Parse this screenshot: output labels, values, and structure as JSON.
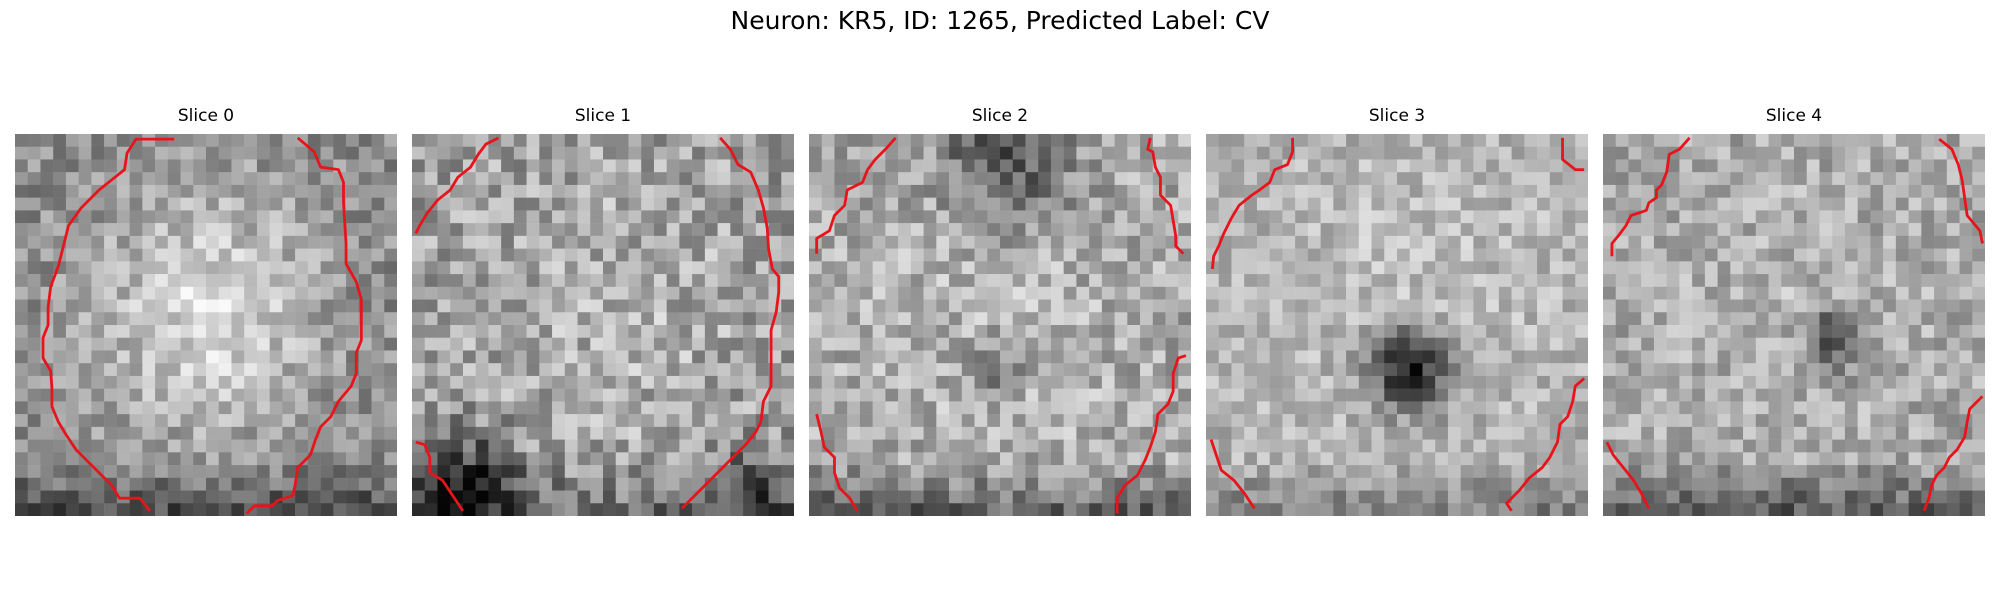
{
  "figure": {
    "title": "Neuron: KR5, ID: 1265, Predicted Label: CV"
  },
  "slices": [
    {
      "title": "Slice 0"
    },
    {
      "title": "Slice 1"
    },
    {
      "title": "Slice 2"
    },
    {
      "title": "Slice 3"
    },
    {
      "title": "Slice 4"
    }
  ],
  "colors": {
    "contour": "#e8141b",
    "background": "#ffffff"
  }
}
